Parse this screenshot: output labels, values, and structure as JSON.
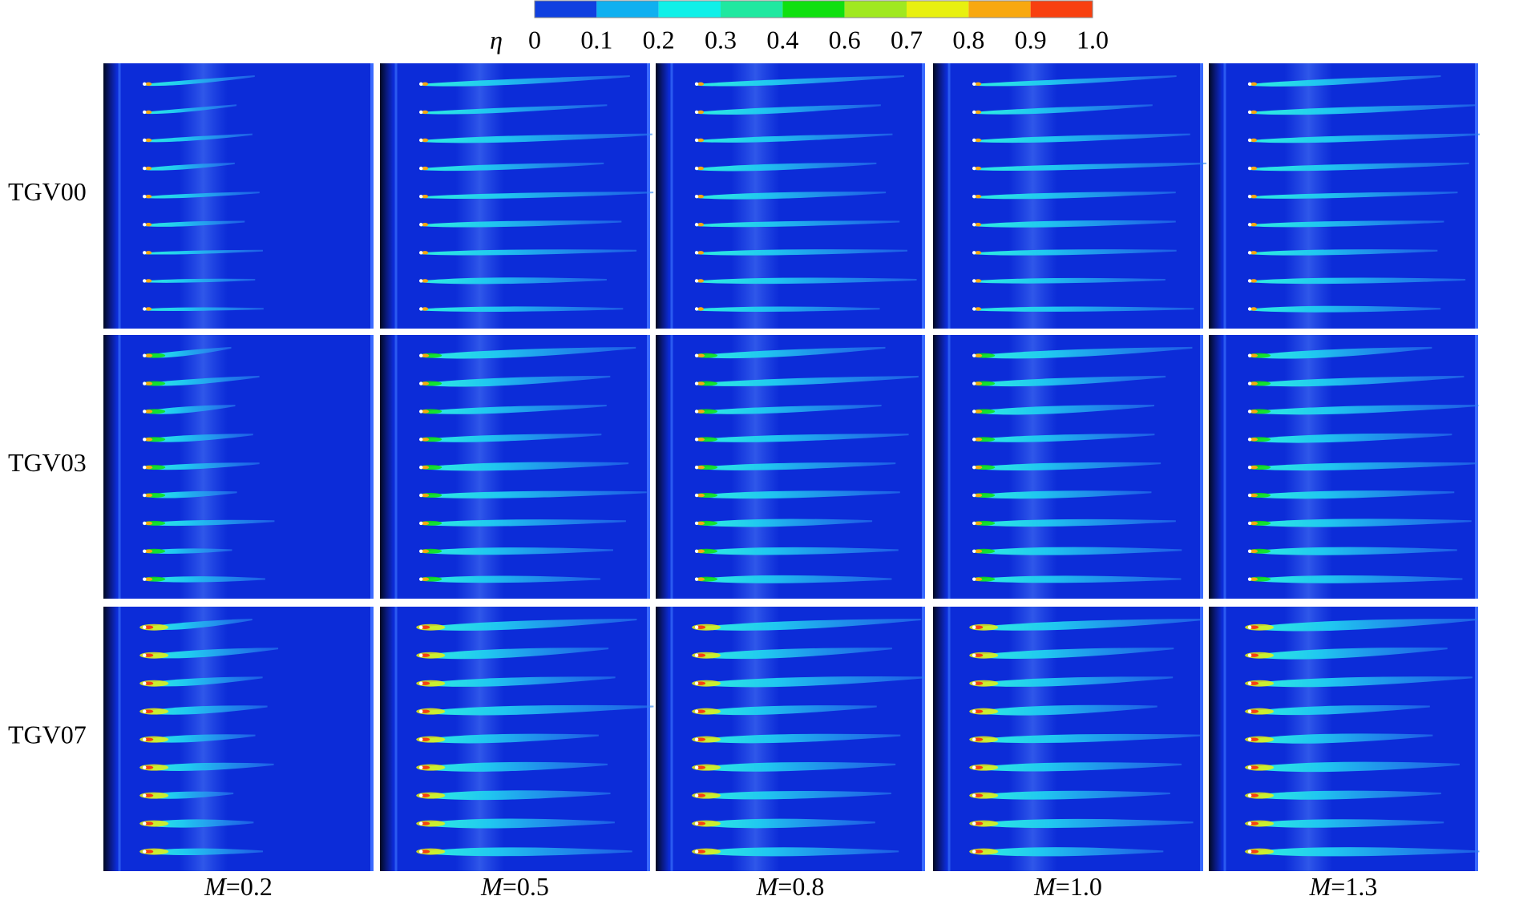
{
  "colorbar": {
    "symbol": "η",
    "labels": [
      "0",
      "0.1",
      "0.2",
      "0.3",
      "0.4",
      "0.6",
      "0.7",
      "0.8",
      "0.9",
      "1.0"
    ],
    "colors": [
      "#1040e0",
      "#10b0f0",
      "#10f0e8",
      "#20e8a0",
      "#10e010",
      "#a0e820",
      "#e8f010",
      "#f8a810",
      "#f84010"
    ]
  },
  "rows": [
    "TGV00",
    "TGV03",
    "TGV07"
  ],
  "columns": [
    {
      "symbol": "M",
      "value": "=0.2"
    },
    {
      "symbol": "M",
      "value": "=0.5"
    },
    {
      "symbol": "M",
      "value": "=0.8"
    },
    {
      "symbol": "M",
      "value": "=1.0"
    },
    {
      "symbol": "M",
      "value": "=1.3"
    }
  ]
}
